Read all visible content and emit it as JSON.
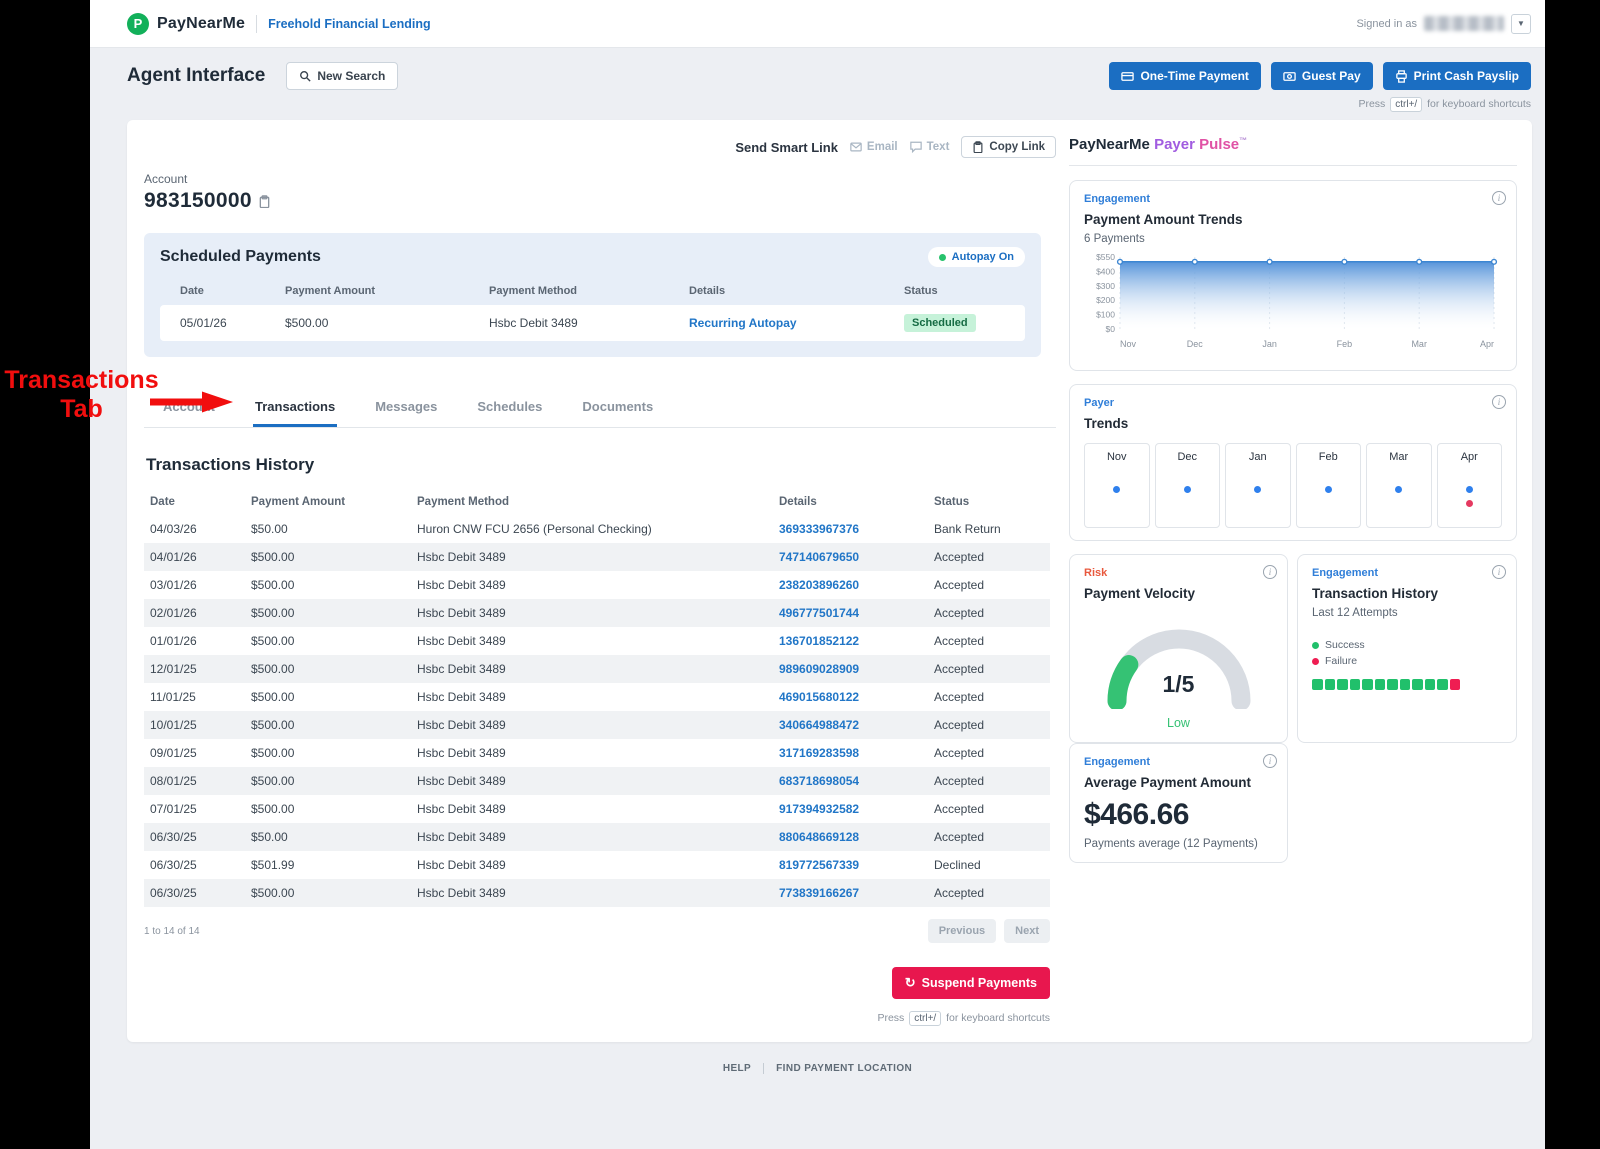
{
  "header": {
    "brand": "PayNearMe",
    "org": "Freehold Financial Lending",
    "signed_in_label": "Signed in as"
  },
  "toolbar": {
    "page_title": "Agent Interface",
    "new_search_label": "New Search",
    "one_time_payment_label": "One-Time Payment",
    "guest_pay_label": "Guest Pay",
    "print_cash_payslip_label": "Print Cash Payslip"
  },
  "shortcut_hint": {
    "press": "Press",
    "key": "ctrl+/",
    "rest": "for keyboard shortcuts"
  },
  "smart_link": {
    "label": "Send Smart Link",
    "email": "Email",
    "text": "Text",
    "copy_link": "Copy Link"
  },
  "account": {
    "label": "Account",
    "number": "983150000"
  },
  "scheduled_payments": {
    "title": "Scheduled Payments",
    "autopay_badge": "Autopay On",
    "columns": [
      "Date",
      "Payment Amount",
      "Payment Method",
      "Details",
      "Status"
    ],
    "rows": [
      {
        "date": "05/01/26",
        "amount": "$500.00",
        "method": "Hsbc Debit 3489",
        "details": "Recurring Autopay",
        "status": "Scheduled"
      }
    ]
  },
  "tabs": [
    {
      "label": "Account"
    },
    {
      "label": "Transactions",
      "active": true
    },
    {
      "label": "Messages"
    },
    {
      "label": "Schedules"
    },
    {
      "label": "Documents"
    }
  ],
  "annotation": {
    "line1": "Transactions",
    "line2": "Tab"
  },
  "transactions": {
    "title": "Transactions History",
    "columns": [
      "Date",
      "Payment Amount",
      "Payment Method",
      "Details",
      "Status"
    ],
    "rows": [
      {
        "date": "04/03/26",
        "amount": "$50.00",
        "method": "Huron CNW FCU 2656 (Personal Checking)",
        "details": "369333967376",
        "status": "Bank Return"
      },
      {
        "date": "04/01/26",
        "amount": "$500.00",
        "method": "Hsbc Debit 3489",
        "details": "747140679650",
        "status": "Accepted"
      },
      {
        "date": "03/01/26",
        "amount": "$500.00",
        "method": "Hsbc Debit 3489",
        "details": "238203896260",
        "status": "Accepted"
      },
      {
        "date": "02/01/26",
        "amount": "$500.00",
        "method": "Hsbc Debit 3489",
        "details": "496777501744",
        "status": "Accepted"
      },
      {
        "date": "01/01/26",
        "amount": "$500.00",
        "method": "Hsbc Debit 3489",
        "details": "136701852122",
        "status": "Accepted"
      },
      {
        "date": "12/01/25",
        "amount": "$500.00",
        "method": "Hsbc Debit 3489",
        "details": "989609028909",
        "status": "Accepted"
      },
      {
        "date": "11/01/25",
        "amount": "$500.00",
        "method": "Hsbc Debit 3489",
        "details": "469015680122",
        "status": "Accepted"
      },
      {
        "date": "10/01/25",
        "amount": "$500.00",
        "method": "Hsbc Debit 3489",
        "details": "340664988472",
        "status": "Accepted"
      },
      {
        "date": "09/01/25",
        "amount": "$500.00",
        "method": "Hsbc Debit 3489",
        "details": "317169283598",
        "status": "Accepted"
      },
      {
        "date": "08/01/25",
        "amount": "$500.00",
        "method": "Hsbc Debit 3489",
        "details": "683718698054",
        "status": "Accepted"
      },
      {
        "date": "07/01/25",
        "amount": "$500.00",
        "method": "Hsbc Debit 3489",
        "details": "917394932582",
        "status": "Accepted"
      },
      {
        "date": "06/30/25",
        "amount": "$50.00",
        "method": "Hsbc Debit 3489",
        "details": "880648669128",
        "status": "Accepted"
      },
      {
        "date": "06/30/25",
        "amount": "$501.99",
        "method": "Hsbc Debit 3489",
        "details": "819772567339",
        "status": "Declined"
      },
      {
        "date": "06/30/25",
        "amount": "$500.00",
        "method": "Hsbc Debit 3489",
        "details": "773839166267",
        "status": "Accepted"
      }
    ],
    "pagination": "1 to 14 of 14",
    "previous_label": "Previous",
    "next_label": "Next"
  },
  "suspend": {
    "label": "Suspend Payments"
  },
  "payer_pulse": {
    "brand": "PayNearMe",
    "title_payer": "Payer",
    "title_pulse": "Pulse",
    "tm": "™"
  },
  "cards": {
    "amount_trends": {
      "category": "Engagement",
      "title": "Payment Amount Trends",
      "subtitle": "6 Payments"
    },
    "payer_trends": {
      "category": "Payer",
      "title": "Trends",
      "months": [
        {
          "label": "Nov"
        },
        {
          "label": "Dec"
        },
        {
          "label": "Jan"
        },
        {
          "label": "Feb"
        },
        {
          "label": "Mar"
        },
        {
          "label": "Apr",
          "red_dot": true
        }
      ]
    },
    "velocity": {
      "category": "Risk",
      "title": "Payment Velocity",
      "value": "1/5",
      "level": "Low",
      "fraction": 0.2
    },
    "tx_history": {
      "category": "Engagement",
      "title": "Transaction History",
      "subtitle": "Last 12 Attempts",
      "legend": [
        {
          "label": "Success",
          "color": "#21c06b"
        },
        {
          "label": "Failure",
          "color": "#ef1d52"
        }
      ],
      "attempts": [
        {
          "color": "#21c06b"
        },
        {
          "color": "#21c06b"
        },
        {
          "color": "#21c06b"
        },
        {
          "color": "#21c06b"
        },
        {
          "color": "#21c06b"
        },
        {
          "color": "#21c06b"
        },
        {
          "color": "#21c06b"
        },
        {
          "color": "#21c06b"
        },
        {
          "color": "#21c06b"
        },
        {
          "color": "#21c06b"
        },
        {
          "color": "#21c06b"
        },
        {
          "color": "#ef1d52"
        }
      ]
    },
    "avg_amount": {
      "category": "Engagement",
      "title": "Average Payment Amount",
      "value": "$466.66",
      "subtitle": "Payments average (12 Payments)"
    }
  },
  "chart_data": {
    "type": "area",
    "title": "Payment Amount Trends",
    "x": [
      "Nov",
      "Dec",
      "Jan",
      "Feb",
      "Mar",
      "Apr"
    ],
    "values": [
      500,
      500,
      500,
      500,
      500,
      500
    ],
    "y_ticks": [
      "$550",
      "$400",
      "$300",
      "$200",
      "$100",
      "$0"
    ],
    "ylabel": "",
    "xlabel": "",
    "grid": "vertical-dashed",
    "legend_position": "none"
  },
  "footer": {
    "help": "HELP",
    "find_location": "FIND PAYMENT LOCATION"
  },
  "icons": {
    "logo": "P",
    "chevron": "▾",
    "suspend": "↻"
  }
}
